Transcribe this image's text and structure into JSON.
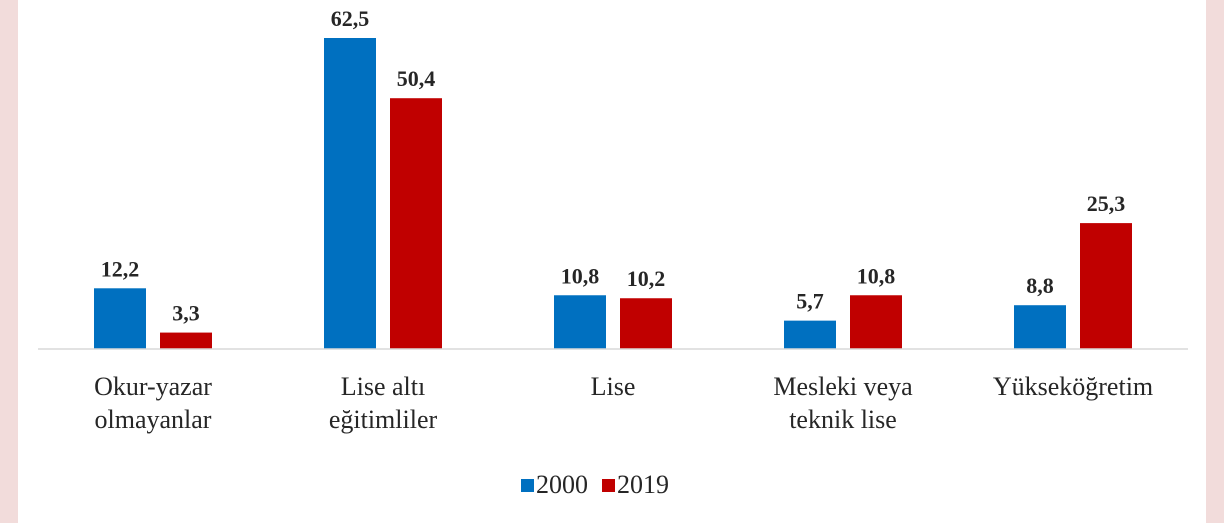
{
  "chart_data": {
    "type": "bar",
    "categories": [
      "Okur-yazar olmayanlar",
      "Lise altı eğitimliler",
      "Lise",
      "Mesleki veya teknik lise",
      "Yükseköğretim"
    ],
    "series": [
      {
        "name": "2000",
        "color": "#0070c0",
        "values": [
          12.2,
          62.5,
          10.8,
          5.7,
          8.8
        ],
        "value_labels": [
          "12,2",
          "62,5",
          "10,8",
          "5,7",
          "8,8"
        ]
      },
      {
        "name": "2019",
        "color": "#c00000",
        "values": [
          3.3,
          50.4,
          10.2,
          10.8,
          25.3
        ],
        "value_labels": [
          "3,3",
          "50,4",
          "10,2",
          "10,8",
          "25,3"
        ]
      }
    ],
    "legend": "bottom"
  }
}
